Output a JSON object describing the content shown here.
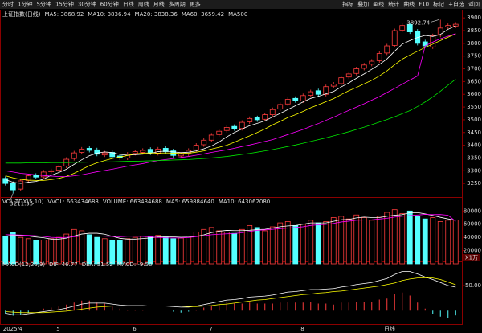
{
  "toolbar": {
    "left": [
      "分时",
      "1分钟",
      "5分钟",
      "15分钟",
      "30分钟",
      "60分钟",
      "日线",
      "周线",
      "月线",
      "多周期",
      "更多"
    ],
    "right": [
      "指标",
      "叠加",
      "画线",
      "统计",
      "曲线",
      "F10",
      "标记",
      "+自选",
      "返回"
    ]
  },
  "chart_data": [
    {
      "type": "candlestick",
      "title": "上证指数(日线)",
      "extra_legend": "MA500",
      "up_color": "#ff3c3c",
      "down_color": "#54ffff",
      "ylim": [
        3200,
        3910
      ],
      "yticks": [
        3250,
        3300,
        3350,
        3400,
        3450,
        3500,
        3550,
        3600,
        3650,
        3700,
        3750,
        3800,
        3850,
        3900
      ],
      "open": [
        3270,
        3250,
        3228,
        3262,
        3282,
        3276,
        3296,
        3302,
        3318,
        3348,
        3372,
        3388,
        3382,
        3362,
        3372,
        3358,
        3350,
        3368,
        3372,
        3384,
        3368,
        3388,
        3378,
        3358,
        3366,
        3382,
        3402,
        3420,
        3442,
        3458,
        3474,
        3466,
        3492,
        3508,
        3502,
        3520,
        3542,
        3562,
        3584,
        3574,
        3596,
        3614,
        3600,
        3632,
        3642,
        3668,
        3682,
        3702,
        3718,
        3732,
        3762,
        3792,
        3852,
        3874,
        3848,
        3806,
        3786,
        3832,
        3864,
        3868
      ],
      "high": [
        3278,
        3258,
        3268,
        3288,
        3290,
        3303,
        3308,
        3322,
        3353,
        3378,
        3393,
        3396,
        3390,
        3378,
        3380,
        3366,
        3373,
        3383,
        3388,
        3392,
        3393,
        3396,
        3386,
        3373,
        3388,
        3408,
        3428,
        3448,
        3463,
        3478,
        3482,
        3498,
        3513,
        3516,
        3528,
        3548,
        3568,
        3588,
        3592,
        3603,
        3618,
        3622,
        3638,
        3648,
        3673,
        3688,
        3708,
        3723,
        3738,
        3768,
        3798,
        3858,
        3878,
        3882,
        3856,
        3814,
        3838,
        3892.74,
        3878,
        3883
      ],
      "low": [
        3242,
        3211.35,
        3220,
        3254,
        3267,
        3268,
        3288,
        3294,
        3310,
        3340,
        3364,
        3372,
        3357,
        3354,
        3347,
        3342,
        3342,
        3360,
        3364,
        3362,
        3360,
        3367,
        3352,
        3350,
        3358,
        3374,
        3394,
        3412,
        3434,
        3450,
        3457,
        3458,
        3484,
        3492,
        3494,
        3512,
        3534,
        3554,
        3567,
        3566,
        3588,
        3592,
        3592,
        3624,
        3634,
        3660,
        3674,
        3694,
        3710,
        3724,
        3754,
        3784,
        3844,
        3837,
        3792,
        3782,
        3778,
        3824,
        3856,
        3860
      ],
      "close": [
        3250,
        3225,
        3260,
        3280,
        3275,
        3295,
        3300,
        3315,
        3345,
        3370,
        3385,
        3380,
        3365,
        3370,
        3355,
        3350,
        3365,
        3375,
        3380,
        3370,
        3385,
        3375,
        3360,
        3365,
        3380,
        3400,
        3420,
        3440,
        3455,
        3470,
        3465,
        3490,
        3505,
        3500,
        3520,
        3540,
        3560,
        3580,
        3575,
        3595,
        3610,
        3600,
        3630,
        3640,
        3665,
        3680,
        3700,
        3715,
        3730,
        3760,
        3790,
        3850,
        3870,
        3845,
        3800,
        3790,
        3830,
        3860,
        3870,
        3875
      ],
      "series": [
        {
          "name": "MA5: 3868.92",
          "color": "#ffffff",
          "values": [
            3265,
            3255,
            3250,
            3255,
            3258,
            3267,
            3282,
            3293,
            3306,
            3325,
            3343,
            3359,
            3369,
            3374,
            3371,
            3364,
            3361,
            3363,
            3365,
            3368,
            3375,
            3377,
            3374,
            3371,
            3373,
            3378,
            3386,
            3397,
            3413,
            3433,
            3450,
            3464,
            3477,
            3486,
            3496,
            3511,
            3525,
            3540,
            3555,
            3570,
            3584,
            3592,
            3602,
            3611,
            3629,
            3645,
            3663,
            3680,
            3698,
            3717,
            3739,
            3769,
            3797,
            3811,
            3823,
            3831,
            3827,
            3835,
            3855,
            3868.92
          ]
        },
        {
          "name": "MA10: 3836.94",
          "color": "#ffff00",
          "values": [
            3280,
            3272,
            3266,
            3263,
            3262,
            3262,
            3265,
            3270,
            3278,
            3290,
            3305,
            3320,
            3331,
            3340,
            3348,
            3354,
            3360,
            3366,
            3369,
            3370,
            3369,
            3370,
            3369,
            3368,
            3369,
            3373,
            3378,
            3385,
            3392,
            3400,
            3412,
            3425,
            3437,
            3450,
            3464,
            3480,
            3494,
            3509,
            3520,
            3533,
            3547,
            3559,
            3571,
            3583,
            3599,
            3614,
            3627,
            3641,
            3655,
            3672,
            3692,
            3716,
            3738,
            3754,
            3769,
            3784,
            3797,
            3811,
            3824,
            3836.94
          ]
        },
        {
          "name": "MA20: 3838.36",
          "color": "#ff00ff",
          "values": [
            3300,
            3295,
            3290,
            3287,
            3284,
            3281,
            3279,
            3277,
            3277,
            3280,
            3284,
            3290,
            3296,
            3301,
            3306,
            3312,
            3318,
            3323,
            3328,
            3334,
            3340,
            3344,
            3348,
            3352,
            3356,
            3361,
            3366,
            3372,
            3377,
            3382,
            3388,
            3395,
            3401,
            3408,
            3415,
            3422,
            3432,
            3442,
            3452,
            3462,
            3474,
            3485,
            3498,
            3510,
            3524,
            3537,
            3550,
            3563,
            3577,
            3591,
            3607,
            3623,
            3640,
            3656,
            3672,
            3790,
            3805,
            3818,
            3828,
            3838.36
          ]
        },
        {
          "name": "MA60: 3659.42",
          "color": "#00e600",
          "values": [
            3330,
            3330,
            3330,
            3331,
            3331,
            3331,
            3332,
            3332,
            3332,
            3333,
            3333,
            3334,
            3334,
            3335,
            3335,
            3336,
            3337,
            3337,
            3338,
            3339,
            3340,
            3341,
            3342,
            3343,
            3344,
            3346,
            3348,
            3350,
            3353,
            3356,
            3360,
            3364,
            3368,
            3373,
            3378,
            3383,
            3389,
            3395,
            3401,
            3408,
            3415,
            3422,
            3429,
            3437,
            3445,
            3453,
            3462,
            3471,
            3481,
            3491,
            3501,
            3512,
            3524,
            3536,
            3552,
            3570,
            3590,
            3612,
            3636,
            3659.42
          ]
        }
      ]
    },
    {
      "type": "bar",
      "title": "VOL-TDX(5,10)",
      "legend_texts": [
        "VVOL: 663434688"
      ],
      "unit_label": "X1万",
      "ylim": [
        0,
        95000
      ],
      "yticks": [
        20000,
        40000,
        60000,
        80000
      ],
      "series": [
        {
          "name": "VOLUME: 663434688",
          "color": "#ff3c3c",
          "values": [
            42000,
            48000,
            40000,
            38000,
            35000,
            36000,
            38000,
            40000,
            45000,
            52000,
            50000,
            44000,
            40000,
            38000,
            36000,
            35000,
            38000,
            40000,
            42000,
            41000,
            43000,
            40000,
            38000,
            39000,
            42000,
            48000,
            52000,
            55000,
            50000,
            48000,
            46000,
            52000,
            58000,
            55000,
            50000,
            56000,
            62000,
            64000,
            58000,
            60000,
            66000,
            62000,
            64000,
            70000,
            72000,
            68000,
            74000,
            70000,
            66000,
            72000,
            78000,
            82000,
            76000,
            80000,
            72000,
            68000,
            70000,
            64000,
            66000,
            66343
          ]
        },
        {
          "name": "MA5: 659884640",
          "color": "#ffffff",
          "values": [
            42000,
            43000,
            43000,
            42000,
            40600,
            39400,
            37400,
            37400,
            38800,
            42200,
            45000,
            46200,
            46200,
            44800,
            41600,
            38600,
            37400,
            37400,
            38200,
            39200,
            40800,
            41200,
            40800,
            40200,
            40400,
            41400,
            43800,
            47200,
            49400,
            50600,
            50200,
            50200,
            50800,
            51800,
            52200,
            54200,
            56200,
            57400,
            58000,
            60000,
            62000,
            62000,
            62000,
            64400,
            66800,
            67200,
            69600,
            70800,
            70000,
            70000,
            72000,
            73600,
            74400,
            77600,
            77600,
            75600,
            73200,
            70400,
            68000,
            65988
          ]
        },
        {
          "name": "MA10: 643062080",
          "color": "#ff00ff",
          "values": [
            44000,
            44000,
            43500,
            43000,
            42500,
            41500,
            40000,
            39500,
            40000,
            41000,
            42000,
            42000,
            42000,
            41800,
            41400,
            41000,
            41800,
            41800,
            41500,
            40900,
            39700,
            39300,
            39100,
            39100,
            39800,
            41100,
            42500,
            44000,
            44800,
            45400,
            45800,
            47000,
            49000,
            50700,
            51400,
            52200,
            53200,
            54100,
            54900,
            56100,
            58100,
            59100,
            59700,
            61200,
            63400,
            64600,
            65900,
            66200,
            66600,
            67800,
            69000,
            70800,
            72000,
            73000,
            73900,
            74900,
            74500,
            74700,
            73500,
            64306
          ]
        }
      ]
    },
    {
      "type": "macd",
      "title": "MACD(12,26,9)",
      "period_label": "日线",
      "ylim": [
        -30,
        90
      ],
      "yticks": [
        {
          "value": 50,
          "label": "50.00"
        }
      ],
      "categories": [
        "2025/4",
        null,
        null,
        null,
        null,
        null,
        null,
        "5",
        null,
        null,
        null,
        null,
        null,
        null,
        null,
        null,
        null,
        "6",
        null,
        null,
        null,
        null,
        null,
        null,
        null,
        null,
        null,
        "7",
        null,
        null,
        null,
        null,
        null,
        null,
        null,
        null,
        null,
        null,
        null,
        "8",
        null,
        null,
        null,
        null,
        null,
        null,
        null,
        null,
        null,
        null,
        null,
        null,
        null,
        null,
        null,
        null,
        null,
        null,
        null,
        null
      ],
      "series": [
        {
          "name": "DIF: 46.77",
          "color": "#ffffff",
          "values": [
            -5,
            -8,
            -8,
            -6,
            -4,
            -2,
            0,
            2,
            5,
            9,
            13,
            15,
            15,
            15,
            13,
            11,
            10,
            10,
            10,
            9,
            9,
            9,
            8,
            7,
            7,
            9,
            12,
            15,
            18,
            21,
            22,
            24,
            27,
            28,
            29,
            31,
            34,
            37,
            38,
            40,
            42,
            42,
            43,
            44,
            47,
            49,
            52,
            54,
            56,
            60,
            64,
            72,
            78,
            78,
            73,
            67,
            62,
            56,
            50,
            46.77
          ]
        },
        {
          "name": "DEA: 51.52",
          "color": "#ffff00",
          "values": [
            -2,
            -3,
            -4,
            -4,
            -4,
            -4,
            -3,
            -2,
            -1,
            1,
            3,
            5,
            7,
            8,
            9,
            9,
            9,
            9,
            9,
            9,
            9,
            9,
            9,
            9,
            8,
            8,
            9,
            10,
            12,
            13,
            15,
            17,
            19,
            21,
            22,
            24,
            26,
            28,
            30,
            32,
            33,
            35,
            36,
            38,
            39,
            41,
            43,
            45,
            47,
            49,
            52,
            55,
            60,
            63,
            65,
            65,
            65,
            62,
            57,
            51.52
          ]
        },
        {
          "name": "MACD: -9.50",
          "color": "#ff00ff",
          "up_color": "#ff3c3c",
          "down_color": "#54ffff",
          "values": [
            -6,
            -10,
            -8,
            -4,
            0,
            4,
            6,
            8,
            12,
            16,
            20,
            20,
            16,
            14,
            8,
            4,
            2,
            2,
            2,
            0,
            0,
            0,
            -2,
            -4,
            -2,
            2,
            6,
            10,
            12,
            16,
            14,
            14,
            16,
            14,
            14,
            14,
            16,
            18,
            16,
            16,
            18,
            14,
            14,
            12,
            16,
            16,
            18,
            18,
            18,
            22,
            24,
            34,
            36,
            30,
            16,
            4,
            -6,
            -12,
            -14,
            -9.5
          ]
        }
      ]
    }
  ]
}
